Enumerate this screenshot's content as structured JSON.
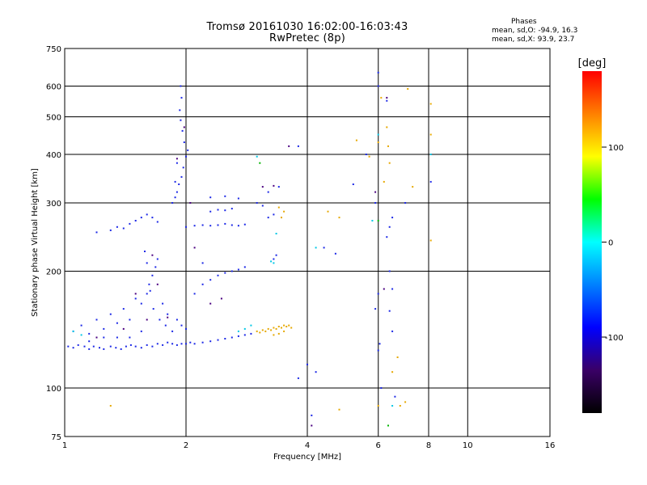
{
  "chart_data": {
    "type": "scatter",
    "title": "Tromsø 20161030 16:02:00-16:03:43",
    "subtitle": "RwPretec (8p)",
    "xlabel": "Frequency [MHz]",
    "ylabel": "Stationary phase Virtual Height [km]",
    "x_scale": "log",
    "y_scale": "log",
    "xlim": [
      1,
      16
    ],
    "ylim": [
      75,
      750
    ],
    "x_ticks": [
      1,
      2,
      4,
      6,
      8,
      10,
      16
    ],
    "y_ticks": [
      75,
      100,
      200,
      300,
      400,
      500,
      600,
      750
    ],
    "grid": true,
    "legend": {
      "title": "Phases",
      "lines": [
        "mean, sd,O: -94.9, 16.3",
        "mean, sd,X:  93.9, 23.7"
      ]
    },
    "colorbar": {
      "label": "[deg]",
      "range": [
        -180,
        180
      ],
      "ticks": [
        100,
        0,
        -100
      ],
      "colors": [
        "#000000",
        "#3a0066",
        "#0000ff",
        "#0080ff",
        "#00ffff",
        "#00ff00",
        "#ffff00",
        "#ff8000",
        "#ff0000"
      ]
    },
    "series": [
      {
        "role": "O-mode (negative phase)",
        "phase": -95,
        "color": "#1c28e6",
        "points": [
          [
            1.02,
            128
          ],
          [
            1.05,
            127
          ],
          [
            1.08,
            129
          ],
          [
            1.12,
            128
          ],
          [
            1.15,
            126
          ],
          [
            1.18,
            128
          ],
          [
            1.22,
            127
          ],
          [
            1.25,
            126
          ],
          [
            1.3,
            128
          ],
          [
            1.34,
            127
          ],
          [
            1.38,
            126
          ],
          [
            1.42,
            128
          ],
          [
            1.46,
            129
          ],
          [
            1.5,
            128
          ],
          [
            1.55,
            127
          ],
          [
            1.6,
            129
          ],
          [
            1.65,
            128
          ],
          [
            1.7,
            130
          ],
          [
            1.75,
            129
          ],
          [
            1.8,
            131
          ],
          [
            1.85,
            130
          ],
          [
            1.9,
            129
          ],
          [
            1.95,
            130
          ],
          [
            2.0,
            130
          ],
          [
            2.05,
            131
          ],
          [
            2.1,
            130
          ],
          [
            2.2,
            131
          ],
          [
            2.3,
            132
          ],
          [
            2.4,
            133
          ],
          [
            2.5,
            134
          ],
          [
            2.6,
            135
          ],
          [
            2.7,
            136
          ],
          [
            2.8,
            137
          ],
          [
            2.9,
            138
          ],
          [
            1.05,
            140
          ],
          [
            1.1,
            145
          ],
          [
            1.15,
            138
          ],
          [
            1.2,
            150
          ],
          [
            1.25,
            142
          ],
          [
            1.3,
            155
          ],
          [
            1.35,
            147
          ],
          [
            1.4,
            160
          ],
          [
            1.45,
            150
          ],
          [
            1.5,
            170
          ],
          [
            1.55,
            165
          ],
          [
            1.6,
            175
          ],
          [
            1.62,
            185
          ],
          [
            1.65,
            195
          ],
          [
            1.68,
            205
          ],
          [
            1.7,
            215
          ],
          [
            1.58,
            225
          ],
          [
            1.6,
            210
          ],
          [
            1.63,
            178
          ],
          [
            1.66,
            160
          ],
          [
            1.72,
            150
          ],
          [
            1.75,
            165
          ],
          [
            1.78,
            145
          ],
          [
            1.8,
            155
          ],
          [
            1.85,
            140
          ],
          [
            1.9,
            150
          ],
          [
            1.95,
            145
          ],
          [
            2.0,
            142
          ],
          [
            1.55,
            140
          ],
          [
            1.45,
            135
          ],
          [
            1.35,
            135
          ],
          [
            1.25,
            135
          ],
          [
            1.15,
            132
          ],
          [
            1.3,
            255
          ],
          [
            1.35,
            260
          ],
          [
            1.4,
            258
          ],
          [
            1.45,
            265
          ],
          [
            1.5,
            270
          ],
          [
            1.55,
            275
          ],
          [
            1.6,
            280
          ],
          [
            1.65,
            275
          ],
          [
            1.7,
            268
          ],
          [
            1.2,
            252
          ],
          [
            1.85,
            300
          ],
          [
            1.88,
            310
          ],
          [
            1.9,
            320
          ],
          [
            1.92,
            335
          ],
          [
            1.95,
            350
          ],
          [
            1.97,
            370
          ],
          [
            2.0,
            395
          ],
          [
            2.02,
            410
          ],
          [
            1.98,
            430
          ],
          [
            1.96,
            460
          ],
          [
            1.94,
            490
          ],
          [
            1.93,
            520
          ],
          [
            1.95,
            560
          ],
          [
            1.94,
            600
          ],
          [
            1.9,
            380
          ],
          [
            1.88,
            340
          ],
          [
            2.0,
            260
          ],
          [
            2.1,
            262
          ],
          [
            2.2,
            263
          ],
          [
            2.3,
            262
          ],
          [
            2.4,
            263
          ],
          [
            2.5,
            265
          ],
          [
            2.6,
            263
          ],
          [
            2.7,
            262
          ],
          [
            2.8,
            264
          ],
          [
            2.3,
            285
          ],
          [
            2.4,
            288
          ],
          [
            2.5,
            287
          ],
          [
            2.6,
            290
          ],
          [
            2.3,
            310
          ],
          [
            2.5,
            312
          ],
          [
            2.7,
            308
          ],
          [
            2.2,
            185
          ],
          [
            2.3,
            190
          ],
          [
            2.4,
            195
          ],
          [
            2.5,
            198
          ],
          [
            2.6,
            200
          ],
          [
            2.7,
            202
          ],
          [
            2.8,
            205
          ],
          [
            2.2,
            210
          ],
          [
            2.1,
            175
          ],
          [
            3.0,
            300
          ],
          [
            3.1,
            295
          ],
          [
            3.2,
            320
          ],
          [
            3.4,
            330
          ],
          [
            3.3,
            280
          ],
          [
            3.2,
            275
          ],
          [
            3.3,
            215
          ],
          [
            3.35,
            220
          ],
          [
            3.8,
            420
          ],
          [
            4.0,
            115
          ],
          [
            4.1,
            85
          ],
          [
            3.8,
            106
          ],
          [
            4.2,
            110
          ],
          [
            4.4,
            230
          ],
          [
            4.7,
            222
          ],
          [
            5.2,
            335
          ],
          [
            5.6,
            400
          ],
          [
            5.9,
            300
          ],
          [
            6.0,
            650
          ],
          [
            6.0,
            600
          ],
          [
            6.1,
            100
          ],
          [
            6.3,
            550
          ],
          [
            6.4,
            200
          ],
          [
            6.5,
            180
          ],
          [
            6.6,
            95
          ],
          [
            7.0,
            300
          ],
          [
            8.1,
            340
          ],
          [
            5.9,
            160
          ],
          [
            6.0,
            175
          ],
          [
            6.05,
            130
          ],
          [
            6.0,
            125
          ],
          [
            6.5,
            140
          ],
          [
            6.4,
            158
          ],
          [
            6.3,
            245
          ],
          [
            6.4,
            260
          ],
          [
            6.5,
            275
          ]
        ]
      },
      {
        "role": "X-mode (positive phase)",
        "phase": 95,
        "color": "#e6a800",
        "points": [
          [
            3.0,
            140
          ],
          [
            3.05,
            139
          ],
          [
            3.1,
            141
          ],
          [
            3.15,
            140
          ],
          [
            3.2,
            142
          ],
          [
            3.25,
            141
          ],
          [
            3.3,
            143
          ],
          [
            3.35,
            142
          ],
          [
            3.4,
            144
          ],
          [
            3.45,
            143
          ],
          [
            3.5,
            145
          ],
          [
            3.55,
            144
          ],
          [
            3.6,
            145
          ],
          [
            3.65,
            143
          ],
          [
            3.4,
            138
          ],
          [
            3.5,
            140
          ],
          [
            3.3,
            137
          ],
          [
            3.45,
            275
          ],
          [
            3.5,
            285
          ],
          [
            3.4,
            292
          ],
          [
            4.5,
            285
          ],
          [
            4.8,
            275
          ],
          [
            5.3,
            435
          ],
          [
            5.7,
            395
          ],
          [
            6.0,
            430
          ],
          [
            6.1,
            560
          ],
          [
            6.3,
            470
          ],
          [
            6.35,
            420
          ],
          [
            6.4,
            380
          ],
          [
            6.2,
            340
          ],
          [
            7.1,
            590
          ],
          [
            7.3,
            330
          ],
          [
            7.0,
            92
          ],
          [
            6.8,
            90
          ],
          [
            8.1,
            540
          ],
          [
            8.1,
            450
          ],
          [
            8.1,
            240
          ],
          [
            4.8,
            88
          ],
          [
            6.0,
            90
          ],
          [
            1.3,
            90
          ],
          [
            6.5,
            110
          ],
          [
            6.7,
            120
          ]
        ]
      },
      {
        "role": "low-phase (dark)",
        "phase": -150,
        "color": "#4a0080",
        "points": [
          [
            1.2,
            135
          ],
          [
            1.4,
            142
          ],
          [
            1.6,
            150
          ],
          [
            1.8,
            152
          ],
          [
            1.65,
            220
          ],
          [
            1.5,
            175
          ],
          [
            1.7,
            185
          ],
          [
            1.9,
            390
          ],
          [
            1.98,
            470
          ],
          [
            2.05,
            300
          ],
          [
            2.1,
            230
          ],
          [
            2.3,
            165
          ],
          [
            2.45,
            170
          ],
          [
            3.1,
            330
          ],
          [
            3.3,
            332
          ],
          [
            3.6,
            420
          ],
          [
            4.1,
            80
          ],
          [
            5.9,
            320
          ],
          [
            6.2,
            180
          ],
          [
            6.3,
            560
          ]
        ]
      },
      {
        "role": "mid-phase (cyan)",
        "phase": -40,
        "color": "#00c8e6",
        "points": [
          [
            1.05,
            140
          ],
          [
            1.1,
            137
          ],
          [
            2.7,
            140
          ],
          [
            2.8,
            142
          ],
          [
            2.9,
            145
          ],
          [
            3.0,
            395
          ],
          [
            3.25,
            212
          ],
          [
            3.3,
            210
          ],
          [
            3.35,
            250
          ],
          [
            4.2,
            230
          ],
          [
            5.8,
            270
          ],
          [
            6.0,
            450
          ],
          [
            6.5,
            90
          ],
          [
            8.1,
            400
          ]
        ]
      },
      {
        "role": "green-phase",
        "phase": 10,
        "color": "#00b400",
        "points": [
          [
            3.05,
            380
          ],
          [
            6.0,
            270
          ],
          [
            6.35,
            80
          ]
        ]
      }
    ]
  }
}
